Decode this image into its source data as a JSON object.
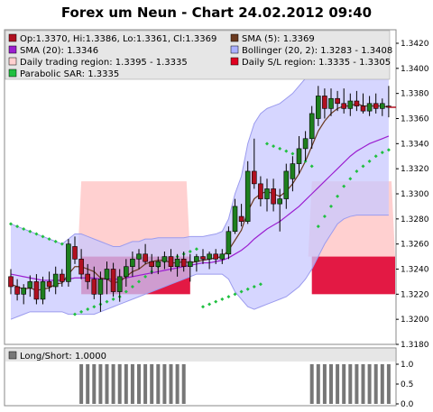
{
  "chart_data": {
    "type": "candlestick",
    "title": "Forex um Neun - Chart 24.02.2012 09:40",
    "colors": {
      "up": "#1e7f1e",
      "down": "#b01020",
      "wick": "#000000",
      "sma5": "#6b3a20",
      "sma20": "#9b1fd0",
      "bollinger_fill": "#c8c8ff",
      "bollinger_line": "#9b9bee",
      "daily_trading_region": "#ffc8c8",
      "daily_sl_region": "#e00030",
      "sar": "#20c040",
      "bars": "#777777"
    },
    "legend": [
      {
        "key": "ohlc",
        "label": "Op:1.3370, Hi:1.3386, Lo:1.3361, Cl:1.3369",
        "color": "#b01020"
      },
      {
        "key": "sma5",
        "label": "SMA (5): 1.3369",
        "color": "#6b3a20"
      },
      {
        "key": "sma20",
        "label": "SMA (20): 1.3346",
        "color": "#9b1fd0"
      },
      {
        "key": "bollinger",
        "label": "Bollinger (20, 2): 1.3283 - 1.3408",
        "color": "#aab0ff"
      },
      {
        "key": "trading_region",
        "label": "Daily trading region: 1.3395 - 1.3335",
        "color": "#ffd0d0"
      },
      {
        "key": "sl_region",
        "label": "Daily S/L region: 1.3335 - 1.3305",
        "color": "#e00020"
      },
      {
        "key": "sar",
        "label": "Parabolic SAR: 1.3335",
        "color": "#20c040"
      }
    ],
    "y_ticks": [
      "1.3420",
      "1.3400",
      "1.3380",
      "1.3360",
      "1.3340",
      "1.3320",
      "1.3300",
      "1.3280",
      "1.3260",
      "1.3240",
      "1.3220",
      "1.3200",
      "1.3180"
    ],
    "ylim": [
      1.318,
      1.342
    ],
    "candles": [
      {
        "o": 1.3234,
        "h": 1.324,
        "l": 1.322,
        "c": 1.3226
      },
      {
        "o": 1.3226,
        "h": 1.3232,
        "l": 1.3215,
        "c": 1.322
      },
      {
        "o": 1.322,
        "h": 1.3228,
        "l": 1.3212,
        "c": 1.3225
      },
      {
        "o": 1.3225,
        "h": 1.3235,
        "l": 1.3218,
        "c": 1.323
      },
      {
        "o": 1.323,
        "h": 1.3236,
        "l": 1.3212,
        "c": 1.3216
      },
      {
        "o": 1.3216,
        "h": 1.3234,
        "l": 1.3212,
        "c": 1.323
      },
      {
        "o": 1.323,
        "h": 1.3238,
        "l": 1.3222,
        "c": 1.3226
      },
      {
        "o": 1.3226,
        "h": 1.3242,
        "l": 1.322,
        "c": 1.3236
      },
      {
        "o": 1.3236,
        "h": 1.324,
        "l": 1.3226,
        "c": 1.323
      },
      {
        "o": 1.323,
        "h": 1.3264,
        "l": 1.3226,
        "c": 1.326
      },
      {
        "o": 1.3258,
        "h": 1.3266,
        "l": 1.3244,
        "c": 1.3248
      },
      {
        "o": 1.3248,
        "h": 1.3256,
        "l": 1.3232,
        "c": 1.3236
      },
      {
        "o": 1.3236,
        "h": 1.3244,
        "l": 1.3224,
        "c": 1.323
      },
      {
        "o": 1.3232,
        "h": 1.3242,
        "l": 1.3216,
        "c": 1.322
      },
      {
        "o": 1.322,
        "h": 1.3238,
        "l": 1.3206,
        "c": 1.3232
      },
      {
        "o": 1.3232,
        "h": 1.3246,
        "l": 1.322,
        "c": 1.324
      },
      {
        "o": 1.324,
        "h": 1.3245,
        "l": 1.3218,
        "c": 1.3222
      },
      {
        "o": 1.3222,
        "h": 1.324,
        "l": 1.3214,
        "c": 1.3234
      },
      {
        "o": 1.3234,
        "h": 1.3248,
        "l": 1.3226,
        "c": 1.3242
      },
      {
        "o": 1.3242,
        "h": 1.3254,
        "l": 1.3234,
        "c": 1.3248
      },
      {
        "o": 1.3248,
        "h": 1.3256,
        "l": 1.324,
        "c": 1.3252
      },
      {
        "o": 1.3252,
        "h": 1.326,
        "l": 1.3244,
        "c": 1.3246
      },
      {
        "o": 1.3246,
        "h": 1.3252,
        "l": 1.3236,
        "c": 1.3242
      },
      {
        "o": 1.3242,
        "h": 1.325,
        "l": 1.3236,
        "c": 1.3246
      },
      {
        "o": 1.3246,
        "h": 1.3254,
        "l": 1.324,
        "c": 1.325
      },
      {
        "o": 1.325,
        "h": 1.3256,
        "l": 1.3238,
        "c": 1.3242
      },
      {
        "o": 1.3242,
        "h": 1.3252,
        "l": 1.3234,
        "c": 1.3248
      },
      {
        "o": 1.3248,
        "h": 1.3254,
        "l": 1.3238,
        "c": 1.3242
      },
      {
        "o": 1.3242,
        "h": 1.3252,
        "l": 1.323,
        "c": 1.3246
      },
      {
        "o": 1.3246,
        "h": 1.3252,
        "l": 1.3238,
        "c": 1.325
      },
      {
        "o": 1.325,
        "h": 1.3256,
        "l": 1.3244,
        "c": 1.3248
      },
      {
        "o": 1.3248,
        "h": 1.3254,
        "l": 1.324,
        "c": 1.3252
      },
      {
        "o": 1.3252,
        "h": 1.3256,
        "l": 1.3244,
        "c": 1.3248
      },
      {
        "o": 1.3248,
        "h": 1.3256,
        "l": 1.3244,
        "c": 1.3252
      },
      {
        "o": 1.3252,
        "h": 1.3274,
        "l": 1.3248,
        "c": 1.327
      },
      {
        "o": 1.327,
        "h": 1.3296,
        "l": 1.3268,
        "c": 1.329
      },
      {
        "o": 1.3282,
        "h": 1.3292,
        "l": 1.3274,
        "c": 1.3278
      },
      {
        "o": 1.3278,
        "h": 1.3326,
        "l": 1.3276,
        "c": 1.3318
      },
      {
        "o": 1.3318,
        "h": 1.3344,
        "l": 1.3304,
        "c": 1.3308
      },
      {
        "o": 1.3308,
        "h": 1.3314,
        "l": 1.329,
        "c": 1.3296
      },
      {
        "o": 1.3296,
        "h": 1.3312,
        "l": 1.3286,
        "c": 1.3304
      },
      {
        "o": 1.3304,
        "h": 1.3312,
        "l": 1.3286,
        "c": 1.3292
      },
      {
        "o": 1.3292,
        "h": 1.3304,
        "l": 1.327,
        "c": 1.3296
      },
      {
        "o": 1.3296,
        "h": 1.3324,
        "l": 1.3288,
        "c": 1.3318
      },
      {
        "o": 1.3312,
        "h": 1.333,
        "l": 1.3302,
        "c": 1.3324
      },
      {
        "o": 1.3324,
        "h": 1.3346,
        "l": 1.3316,
        "c": 1.3336
      },
      {
        "o": 1.3336,
        "h": 1.335,
        "l": 1.3326,
        "c": 1.3344
      },
      {
        "o": 1.3344,
        "h": 1.337,
        "l": 1.3336,
        "c": 1.3364
      },
      {
        "o": 1.336,
        "h": 1.3386,
        "l": 1.3354,
        "c": 1.3378
      },
      {
        "o": 1.3378,
        "h": 1.3384,
        "l": 1.336,
        "c": 1.3368
      },
      {
        "o": 1.3368,
        "h": 1.3384,
        "l": 1.3362,
        "c": 1.3376
      },
      {
        "o": 1.3376,
        "h": 1.3382,
        "l": 1.3366,
        "c": 1.3372
      },
      {
        "o": 1.3372,
        "h": 1.3384,
        "l": 1.3364,
        "c": 1.3368
      },
      {
        "o": 1.3368,
        "h": 1.338,
        "l": 1.3362,
        "c": 1.3374
      },
      {
        "o": 1.3374,
        "h": 1.3382,
        "l": 1.3366,
        "c": 1.337
      },
      {
        "o": 1.337,
        "h": 1.338,
        "l": 1.3364,
        "c": 1.3366
      },
      {
        "o": 1.3366,
        "h": 1.3378,
        "l": 1.3362,
        "c": 1.3372
      },
      {
        "o": 1.3372,
        "h": 1.338,
        "l": 1.3364,
        "c": 1.3368
      },
      {
        "o": 1.3368,
        "h": 1.3376,
        "l": 1.3362,
        "c": 1.3372
      },
      {
        "o": 1.337,
        "h": 1.3386,
        "l": 1.3361,
        "c": 1.3369
      }
    ],
    "sma5": [
      1.3228,
      1.3226,
      1.3224,
      1.3225,
      1.3223,
      1.3224,
      1.3225,
      1.3228,
      1.3229,
      1.3236,
      1.3242,
      1.3242,
      1.324,
      1.3238,
      1.3233,
      1.3232,
      1.3229,
      1.323,
      1.3234,
      1.3238,
      1.324,
      1.3244,
      1.3246,
      1.3247,
      1.3247,
      1.3245,
      1.3245,
      1.3246,
      1.3245,
      1.3246,
      1.3247,
      1.3248,
      1.3249,
      1.325,
      1.3255,
      1.3263,
      1.3271,
      1.3286,
      1.3296,
      1.33,
      1.3302,
      1.33,
      1.3298,
      1.3302,
      1.3308,
      1.3316,
      1.3326,
      1.3338,
      1.335,
      1.3358,
      1.3364,
      1.3368,
      1.337,
      1.337,
      1.3372,
      1.337,
      1.337,
      1.337,
      1.337,
      1.3369
    ],
    "sma20": [
      1.3236,
      1.3235,
      1.3234,
      1.3233,
      1.3232,
      1.3231,
      1.3231,
      1.3231,
      1.3231,
      1.3232,
      1.3233,
      1.3233,
      1.3233,
      1.3233,
      1.3232,
      1.3232,
      1.3232,
      1.3232,
      1.3233,
      1.3234,
      1.3235,
      1.3236,
      1.3237,
      1.3238,
      1.3239,
      1.324,
      1.3241,
      1.3242,
      1.3243,
      1.3244,
      1.3245,
      1.3245,
      1.3246,
      1.3247,
      1.3249,
      1.3252,
      1.3255,
      1.3259,
      1.3264,
      1.3268,
      1.3272,
      1.3275,
      1.3278,
      1.3282,
      1.3286,
      1.329,
      1.3295,
      1.33,
      1.3305,
      1.331,
      1.3315,
      1.332,
      1.3325,
      1.333,
      1.3334,
      1.3337,
      1.334,
      1.3342,
      1.3344,
      1.3346
    ],
    "boll_upper": [
      1.3276,
      1.3274,
      1.3272,
      1.327,
      1.3268,
      1.3266,
      1.3264,
      1.3262,
      1.326,
      1.3264,
      1.3268,
      1.3268,
      1.3266,
      1.3264,
      1.3262,
      1.326,
      1.3258,
      1.3258,
      1.326,
      1.3262,
      1.3262,
      1.3264,
      1.3264,
      1.3265,
      1.3265,
      1.3265,
      1.3265,
      1.3265,
      1.3266,
      1.3266,
      1.3266,
      1.3267,
      1.3268,
      1.327,
      1.328,
      1.33,
      1.3314,
      1.334,
      1.3356,
      1.3364,
      1.3368,
      1.337,
      1.3372,
      1.3376,
      1.338,
      1.3386,
      1.3392,
      1.3398,
      1.3402,
      1.3404,
      1.3405,
      1.3406,
      1.3406,
      1.3407,
      1.3408,
      1.3408,
      1.3408,
      1.3408,
      1.3408,
      1.3408
    ],
    "boll_lower": [
      1.32,
      1.3202,
      1.3204,
      1.3206,
      1.3206,
      1.3206,
      1.3206,
      1.3206,
      1.3206,
      1.3204,
      1.3204,
      1.3204,
      1.3204,
      1.3204,
      1.3206,
      1.3208,
      1.321,
      1.3212,
      1.3214,
      1.3216,
      1.3218,
      1.322,
      1.3222,
      1.3224,
      1.3226,
      1.3228,
      1.323,
      1.3232,
      1.3234,
      1.3236,
      1.3236,
      1.3236,
      1.3236,
      1.3236,
      1.3232,
      1.3222,
      1.3216,
      1.321,
      1.3208,
      1.321,
      1.3212,
      1.3214,
      1.3216,
      1.3218,
      1.3222,
      1.3226,
      1.3232,
      1.324,
      1.325,
      1.326,
      1.3268,
      1.3276,
      1.328,
      1.3282,
      1.3283,
      1.3283,
      1.3283,
      1.3283,
      1.3283,
      1.3283
    ],
    "sar": [
      1.3276,
      1.3274,
      1.3272,
      1.327,
      1.3268,
      1.3266,
      1.3264,
      1.3262,
      1.326,
      1.3258,
      1.3204,
      1.3206,
      1.3208,
      1.321,
      1.3212,
      1.3214,
      1.3216,
      1.3218,
      1.3222,
      1.3226,
      1.323,
      1.3234,
      1.3238,
      1.3242,
      1.3246,
      1.3248,
      1.325,
      1.3252,
      1.3254,
      1.3256,
      1.321,
      1.3212,
      1.3214,
      1.3216,
      1.3218,
      1.322,
      1.3222,
      1.3224,
      1.3226,
      1.3228,
      1.334,
      1.3338,
      1.3336,
      1.3334,
      1.3332,
      1.333,
      1.3326,
      1.3322,
      1.3274,
      1.3282,
      1.329,
      1.3298,
      1.3306,
      1.3312,
      1.3318,
      1.3322,
      1.3326,
      1.333,
      1.3333,
      1.3335
    ],
    "trading_regions": [
      {
        "start": 11,
        "end": 28,
        "from": 1.331,
        "to": 1.325
      },
      {
        "start": 47,
        "end": 73,
        "from": 1.331,
        "to": 1.325
      }
    ],
    "sl_regions": [
      {
        "start": 11,
        "end": 28,
        "from": 1.325,
        "to": 1.322
      },
      {
        "start": 47,
        "end": 65,
        "from": 1.325,
        "to": 1.322
      }
    ],
    "longshort": {
      "label": "Long/Short: 1.0000",
      "y_ticks": [
        "1.0",
        "0.5",
        "0.0"
      ],
      "ylim": [
        0,
        1
      ],
      "values": [
        0,
        0,
        0,
        0,
        0,
        0,
        0,
        0,
        0,
        0,
        0,
        1,
        1,
        1,
        1,
        1,
        1,
        1,
        1,
        1,
        1,
        1,
        1,
        1,
        1,
        1,
        1,
        1,
        0,
        0,
        0,
        0,
        0,
        0,
        0,
        0,
        0,
        0,
        0,
        0,
        0,
        0,
        0,
        0,
        0,
        0,
        0,
        1,
        1,
        1,
        1,
        1,
        1,
        1,
        1,
        1,
        1,
        1,
        1,
        1
      ]
    }
  }
}
